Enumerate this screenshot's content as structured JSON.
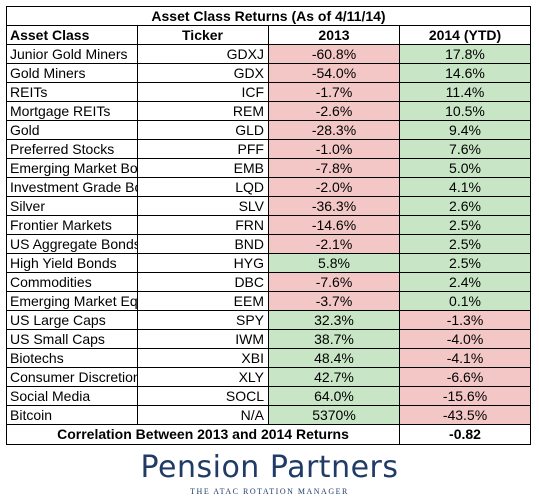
{
  "chart_data": {
    "type": "table",
    "title": "Asset Class Returns (As of 4/11/14)",
    "columns": [
      "Asset Class",
      "Ticker",
      "2013",
      "2014 (YTD)"
    ],
    "rows": [
      {
        "asset": "Junior Gold Miners",
        "ticker": "GDXJ",
        "y2013": "-60.8%",
        "y2014": "17.8%"
      },
      {
        "asset": "Gold Miners",
        "ticker": "GDX",
        "y2013": "-54.0%",
        "y2014": "14.6%"
      },
      {
        "asset": "REITs",
        "ticker": "ICF",
        "y2013": "-1.7%",
        "y2014": "11.4%"
      },
      {
        "asset": "Mortgage REITs",
        "ticker": "REM",
        "y2013": "-2.6%",
        "y2014": "10.5%"
      },
      {
        "asset": "Gold",
        "ticker": "GLD",
        "y2013": "-28.3%",
        "y2014": "9.4%"
      },
      {
        "asset": "Preferred Stocks",
        "ticker": "PFF",
        "y2013": "-1.0%",
        "y2014": "7.6%"
      },
      {
        "asset": "Emerging Market Bonds",
        "ticker": "EMB",
        "y2013": "-7.8%",
        "y2014": "5.0%"
      },
      {
        "asset": "Investment Grade Bonds",
        "ticker": "LQD",
        "y2013": "-2.0%",
        "y2014": "4.1%"
      },
      {
        "asset": "Silver",
        "ticker": "SLV",
        "y2013": "-36.3%",
        "y2014": "2.6%"
      },
      {
        "asset": "Frontier Markets",
        "ticker": "FRN",
        "y2013": "-14.6%",
        "y2014": "2.5%"
      },
      {
        "asset": "US Aggregate Bonds",
        "ticker": "BND",
        "y2013": "-2.1%",
        "y2014": "2.5%"
      },
      {
        "asset": "High Yield Bonds",
        "ticker": "HYG",
        "y2013": "5.8%",
        "y2014": "2.5%"
      },
      {
        "asset": "Commodities",
        "ticker": "DBC",
        "y2013": "-7.6%",
        "y2014": "2.4%"
      },
      {
        "asset": "Emerging Market Equities",
        "ticker": "EEM",
        "y2013": "-3.7%",
        "y2014": "0.1%"
      },
      {
        "asset": "US Large Caps",
        "ticker": "SPY",
        "y2013": "32.3%",
        "y2014": "-1.3%"
      },
      {
        "asset": "US Small Caps",
        "ticker": "IWM",
        "y2013": "38.7%",
        "y2014": "-4.0%"
      },
      {
        "asset": "Biotechs",
        "ticker": "XBI",
        "y2013": "48.4%",
        "y2014": "-4.1%"
      },
      {
        "asset": "Consumer Discretionary",
        "ticker": "XLY",
        "y2013": "42.7%",
        "y2014": "-6.6%"
      },
      {
        "asset": "Social Media",
        "ticker": "SOCL",
        "y2013": "64.0%",
        "y2014": "-15.6%"
      },
      {
        "asset": "Bitcoin",
        "ticker": "N/A",
        "y2013": "5370%",
        "y2014": "-43.5%"
      }
    ],
    "correlation_label": "Correlation Between 2013 and 2014 Returns",
    "correlation_value": "-0.82",
    "colors": {
      "negative": "#f4c7c7",
      "positive": "#c8e6c6",
      "logo": "#1f3b66"
    }
  },
  "logo": {
    "name": "Pension Partners",
    "tagline": "THE ATAC ROTATION MANAGER"
  }
}
